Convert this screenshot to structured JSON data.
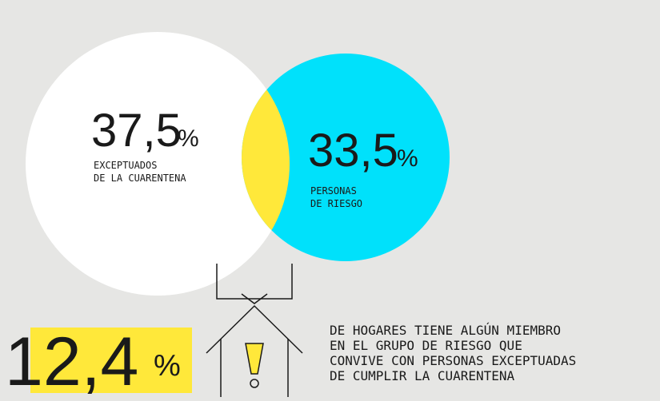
{
  "circles": [
    {
      "value": "37,5",
      "unit": "%",
      "label": [
        "EXCEPTUADOS",
        "DE LA CUARENTENA"
      ]
    },
    {
      "value": "33,5",
      "unit": "%",
      "label": [
        "PERSONAS",
        "DE RIESGO"
      ]
    }
  ],
  "overlap": {
    "value": "12,4",
    "unit": "%",
    "description": [
      "DE HOGARES TIENE ALGÚN MIEMBRO",
      "EN EL GRUPO DE RIESGO QUE",
      "CONVIVE CON PERSONAS EXCEPTUADAS",
      "DE CUMPLIR LA CUARENTENA"
    ]
  }
}
